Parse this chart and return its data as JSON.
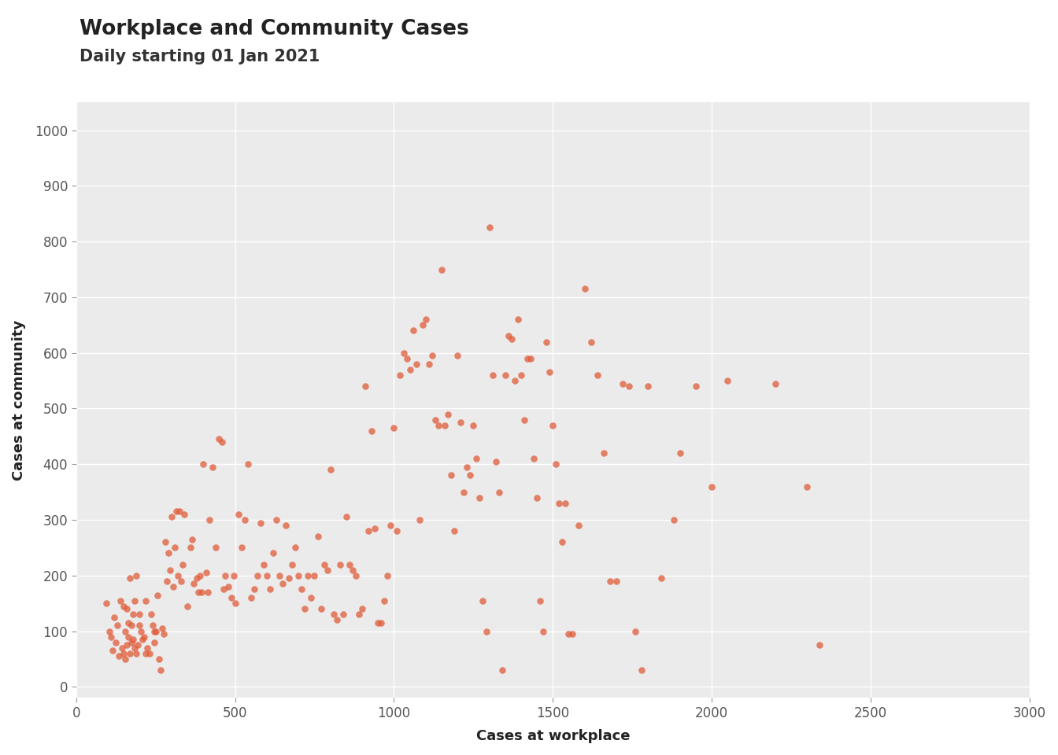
{
  "title": "Workplace and Community Cases",
  "subtitle": "Daily starting 01 Jan 2021",
  "xlabel": "Cases at workplace",
  "ylabel": "Cases at community",
  "xlim": [
    0,
    3000
  ],
  "ylim": [
    -20,
    1050
  ],
  "xticks": [
    0,
    500,
    1000,
    1500,
    2000,
    2500,
    3000
  ],
  "yticks": [
    0,
    100,
    200,
    300,
    400,
    500,
    600,
    700,
    800,
    900,
    1000
  ],
  "dot_color": "#E05C3A",
  "dot_alpha": 0.75,
  "dot_size": 38,
  "bg_color": "#EBEBEB",
  "grid_color": "#FFFFFF",
  "title_fontsize": 19,
  "subtitle_fontsize": 15,
  "axis_label_fontsize": 13,
  "tick_fontsize": 12,
  "x": [
    95,
    105,
    110,
    115,
    120,
    125,
    130,
    135,
    140,
    145,
    150,
    150,
    155,
    155,
    160,
    160,
    165,
    165,
    170,
    170,
    175,
    175,
    180,
    180,
    185,
    185,
    190,
    190,
    195,
    200,
    200,
    205,
    210,
    215,
    220,
    220,
    225,
    230,
    235,
    240,
    245,
    245,
    250,
    255,
    260,
    265,
    270,
    275,
    280,
    285,
    290,
    295,
    300,
    305,
    310,
    315,
    320,
    325,
    330,
    335,
    340,
    350,
    360,
    365,
    370,
    380,
    385,
    390,
    395,
    400,
    410,
    415,
    420,
    430,
    440,
    450,
    460,
    465,
    470,
    480,
    490,
    495,
    500,
    510,
    520,
    530,
    540,
    550,
    560,
    570,
    580,
    590,
    600,
    610,
    620,
    630,
    640,
    650,
    660,
    670,
    680,
    690,
    700,
    710,
    720,
    730,
    740,
    750,
    760,
    770,
    780,
    790,
    800,
    810,
    820,
    830,
    840,
    850,
    860,
    870,
    880,
    890,
    900,
    910,
    920,
    930,
    940,
    950,
    960,
    970,
    980,
    990,
    1000,
    1010,
    1020,
    1030,
    1040,
    1050,
    1060,
    1070,
    1080,
    1090,
    1100,
    1110,
    1120,
    1130,
    1140,
    1150,
    1160,
    1170,
    1180,
    1190,
    1200,
    1210,
    1220,
    1230,
    1240,
    1250,
    1260,
    1270,
    1280,
    1290,
    1300,
    1310,
    1320,
    1330,
    1340,
    1350,
    1360,
    1370,
    1380,
    1390,
    1400,
    1410,
    1420,
    1430,
    1440,
    1450,
    1460,
    1470,
    1480,
    1490,
    1500,
    1510,
    1520,
    1530,
    1540,
    1550,
    1560,
    1580,
    1600,
    1620,
    1640,
    1660,
    1680,
    1700,
    1720,
    1740,
    1760,
    1780,
    1800,
    1840,
    1880,
    1900,
    1950,
    2000,
    2050,
    2200,
    2300,
    2340
  ],
  "y": [
    150,
    100,
    90,
    65,
    125,
    80,
    110,
    55,
    155,
    70,
    145,
    60,
    100,
    50,
    140,
    75,
    90,
    115,
    195,
    60,
    110,
    80,
    85,
    130,
    155,
    70,
    200,
    60,
    75,
    110,
    130,
    100,
    85,
    90,
    155,
    60,
    70,
    60,
    130,
    110,
    100,
    80,
    100,
    165,
    50,
    30,
    105,
    95,
    260,
    190,
    240,
    210,
    305,
    180,
    250,
    315,
    200,
    315,
    190,
    220,
    310,
    145,
    250,
    265,
    185,
    195,
    170,
    200,
    170,
    400,
    205,
    170,
    300,
    395,
    250,
    445,
    440,
    175,
    200,
    180,
    160,
    200,
    150,
    310,
    250,
    300,
    400,
    160,
    175,
    200,
    295,
    220,
    200,
    175,
    240,
    300,
    200,
    185,
    290,
    195,
    220,
    250,
    200,
    175,
    140,
    200,
    160,
    200,
    270,
    140,
    220,
    210,
    390,
    130,
    120,
    220,
    130,
    305,
    220,
    210,
    200,
    130,
    140,
    540,
    280,
    460,
    285,
    115,
    115,
    155,
    200,
    290,
    465,
    280,
    560,
    600,
    590,
    570,
    640,
    580,
    300,
    650,
    660,
    580,
    595,
    480,
    470,
    750,
    470,
    490,
    380,
    280,
    595,
    475,
    350,
    395,
    380,
    470,
    410,
    340,
    155,
    100,
    825,
    560,
    405,
    350,
    30,
    560,
    630,
    625,
    550,
    660,
    560,
    480,
    590,
    590,
    410,
    340,
    155,
    100,
    620,
    565,
    470,
    400,
    330,
    260,
    330,
    95,
    95,
    290,
    715,
    620,
    560,
    420,
    190,
    190,
    545,
    540,
    100,
    30,
    540,
    195,
    300,
    420,
    540,
    360,
    550,
    545,
    360,
    75
  ]
}
